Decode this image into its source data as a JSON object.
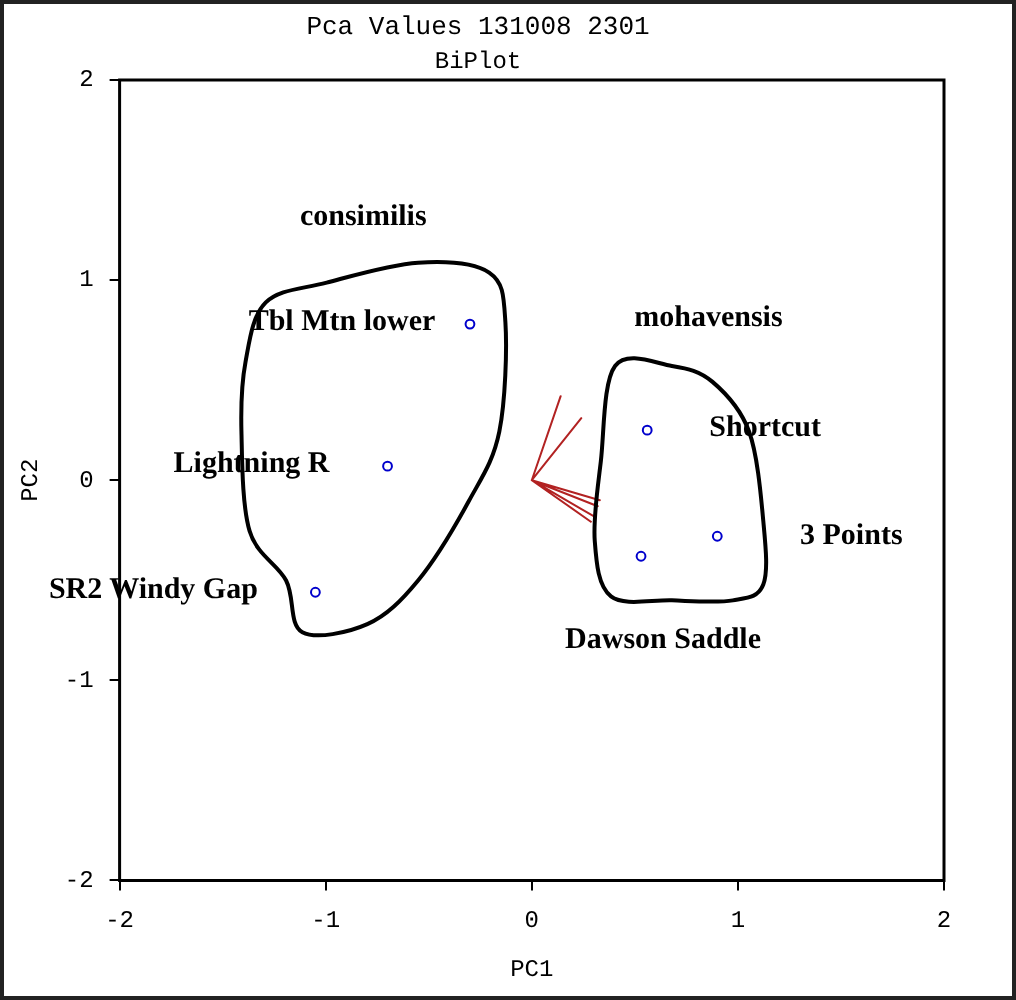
{
  "chart_data": {
    "type": "scatter",
    "title": "Pca Values 131008 2301",
    "subtitle": "BiPlot",
    "xlabel": "PC1",
    "ylabel": "PC2",
    "xlim": [
      -2,
      2
    ],
    "ylim": [
      -2,
      2
    ],
    "xticks": [
      -2,
      -1,
      0,
      1,
      2
    ],
    "yticks": [
      -2,
      -1,
      0,
      1,
      2
    ],
    "grid": false,
    "legend": false,
    "marker": "circle",
    "series": [
      {
        "type": "scatter",
        "color": "#0000cc",
        "x": [
          -0.3,
          -0.7,
          -1.05,
          0.56,
          0.9,
          0.53
        ],
        "values": [
          0.78,
          0.07,
          -0.56,
          0.25,
          -0.28,
          -0.38
        ]
      },
      {
        "type": "line",
        "color": "#b22222",
        "marker": "none",
        "x": [
          0,
          0.14,
          0,
          0.24,
          0,
          0.33,
          0,
          0.32,
          0,
          0.3,
          0,
          0.29
        ],
        "values": [
          0,
          0.42,
          0,
          0.31,
          0,
          -0.1,
          0,
          -0.13,
          0,
          -0.18,
          0,
          -0.21
        ]
      }
    ],
    "annotations": [
      "consimilis",
      {
        "text": "Tbl Mtn lower",
        "x": -0.3,
        "y": 0.78
      },
      {
        "text": "Lightning R",
        "x": -0.7,
        "y": 0.07
      },
      {
        "text": "SR2 Windy Gap",
        "x": -1.05,
        "y": -0.56
      },
      "mohavensis",
      {
        "text": "Shortcut",
        "x": 0.56,
        "y": 0.25
      },
      {
        "text": "3 Points",
        "x": 0.9,
        "y": -0.28
      },
      {
        "text": "Dawson Saddle",
        "x": 0.53,
        "y": -0.38
      }
    ]
  }
}
